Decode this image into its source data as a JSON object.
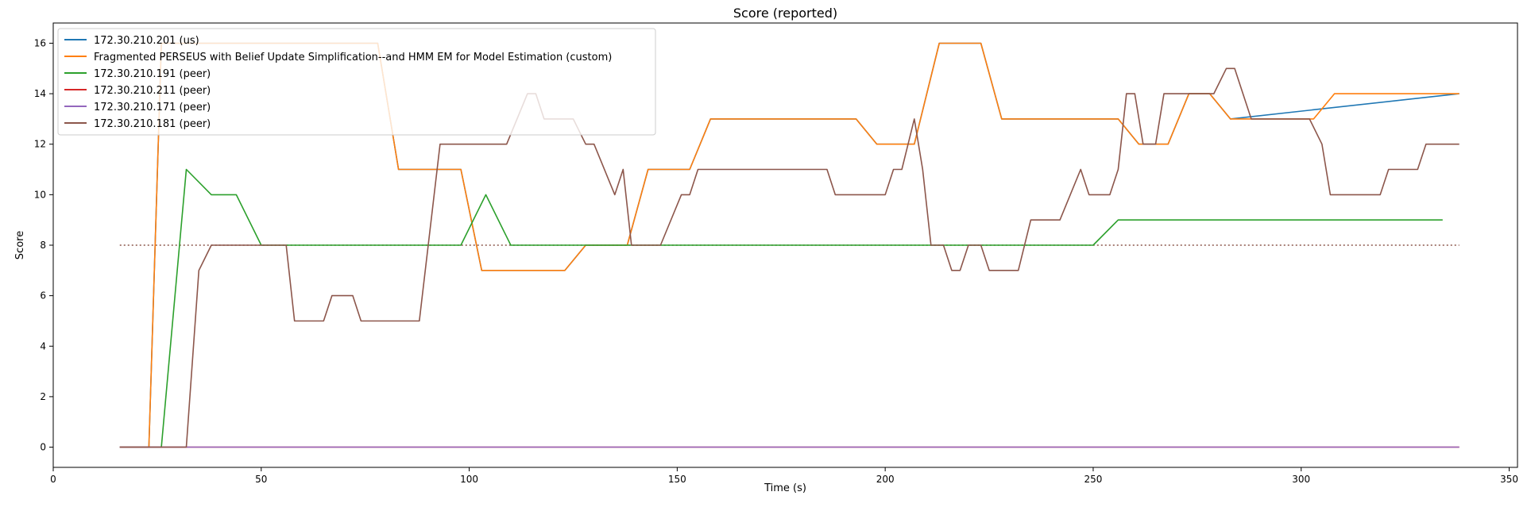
{
  "chart_data": {
    "type": "line",
    "title": "Score (reported)",
    "xlabel": "Time (s)",
    "ylabel": "Score",
    "xlim": [
      0,
      352
    ],
    "ylim": [
      -0.8,
      16.8
    ],
    "xticks": [
      0,
      50,
      100,
      150,
      200,
      250,
      300,
      350
    ],
    "yticks": [
      0,
      2,
      4,
      6,
      8,
      10,
      12,
      14,
      16
    ],
    "grid": false,
    "legend_position": "top-left",
    "reference_line": {
      "y": 8,
      "x_range": [
        16,
        338
      ],
      "style": "dotted",
      "color": "#8c564b"
    },
    "series": [
      {
        "name": "172.30.210.201 (us)",
        "color": "#1f77b4",
        "points": [
          [
            16,
            0
          ],
          [
            23,
            0
          ],
          [
            26,
            16
          ],
          [
            78,
            16
          ],
          [
            83,
            11
          ],
          [
            98,
            11
          ],
          [
            103,
            7
          ],
          [
            123,
            7
          ],
          [
            128,
            8
          ],
          [
            138,
            8
          ],
          [
            143,
            11
          ],
          [
            153,
            11
          ],
          [
            158,
            13
          ],
          [
            193,
            13
          ],
          [
            198,
            12
          ],
          [
            207,
            12
          ],
          [
            213,
            16
          ],
          [
            223,
            16
          ],
          [
            228,
            13
          ],
          [
            256,
            13
          ],
          [
            261,
            12
          ],
          [
            268,
            12
          ],
          [
            273,
            14
          ],
          [
            278,
            14
          ],
          [
            283,
            13
          ],
          [
            338,
            14
          ]
        ]
      },
      {
        "name": "Fragmented PERSEUS with Belief Update Simplification--and HMM EM for Model Estimation (custom)",
        "color": "#ff7f0e",
        "points": [
          [
            16,
            0
          ],
          [
            23,
            0
          ],
          [
            26,
            16
          ],
          [
            78,
            16
          ],
          [
            83,
            11
          ],
          [
            98,
            11
          ],
          [
            103,
            7
          ],
          [
            123,
            7
          ],
          [
            128,
            8
          ],
          [
            138,
            8
          ],
          [
            143,
            11
          ],
          [
            153,
            11
          ],
          [
            158,
            13
          ],
          [
            193,
            13
          ],
          [
            198,
            12
          ],
          [
            207,
            12
          ],
          [
            213,
            16
          ],
          [
            223,
            16
          ],
          [
            228,
            13
          ],
          [
            256,
            13
          ],
          [
            261,
            12
          ],
          [
            266,
            12
          ],
          [
            268,
            12
          ],
          [
            273,
            14
          ],
          [
            278,
            14
          ],
          [
            283,
            13
          ],
          [
            303,
            13
          ],
          [
            308,
            14
          ],
          [
            338,
            14
          ]
        ]
      },
      {
        "name": "172.30.210.191 (peer)",
        "color": "#2ca02c",
        "points": [
          [
            16,
            0
          ],
          [
            26,
            0
          ],
          [
            32,
            11
          ],
          [
            38,
            10
          ],
          [
            44,
            10
          ],
          [
            50,
            8
          ],
          [
            98,
            8
          ],
          [
            104,
            10
          ],
          [
            110,
            8
          ],
          [
            250,
            8
          ],
          [
            256,
            9
          ],
          [
            334,
            9
          ]
        ]
      },
      {
        "name": "172.30.210.211 (peer)",
        "color": "#d62728",
        "points": [
          [
            16,
            0
          ],
          [
            338,
            0
          ]
        ]
      },
      {
        "name": "172.30.210.171 (peer)",
        "color": "#9467bd",
        "points": [
          [
            16,
            0
          ],
          [
            338,
            0
          ]
        ]
      },
      {
        "name": "172.30.210.181 (peer)",
        "color": "#8c564b",
        "points": [
          [
            16,
            0
          ],
          [
            32,
            0
          ],
          [
            35,
            7
          ],
          [
            38,
            8
          ],
          [
            56,
            8
          ],
          [
            58,
            5
          ],
          [
            65,
            5
          ],
          [
            67,
            6
          ],
          [
            72,
            6
          ],
          [
            74,
            5
          ],
          [
            88,
            5
          ],
          [
            93,
            12
          ],
          [
            109,
            12
          ],
          [
            114,
            14
          ],
          [
            116,
            14
          ],
          [
            118,
            13
          ],
          [
            125,
            13
          ],
          [
            128,
            12
          ],
          [
            130,
            12
          ],
          [
            135,
            10
          ],
          [
            137,
            11
          ],
          [
            139,
            8
          ],
          [
            146,
            8
          ],
          [
            151,
            10
          ],
          [
            153,
            10
          ],
          [
            155,
            11
          ],
          [
            186,
            11
          ],
          [
            188,
            10
          ],
          [
            200,
            10
          ],
          [
            202,
            11
          ],
          [
            204,
            11
          ],
          [
            207,
            13
          ],
          [
            209,
            11
          ],
          [
            211,
            8
          ],
          [
            214,
            8
          ],
          [
            216,
            7
          ],
          [
            218,
            7
          ],
          [
            220,
            8
          ],
          [
            223,
            8
          ],
          [
            225,
            7
          ],
          [
            232,
            7
          ],
          [
            235,
            9
          ],
          [
            242,
            9
          ],
          [
            247,
            11
          ],
          [
            249,
            10
          ],
          [
            254,
            10
          ],
          [
            256,
            11
          ],
          [
            258,
            14
          ],
          [
            260,
            14
          ],
          [
            262,
            12
          ],
          [
            265,
            12
          ],
          [
            267,
            14
          ],
          [
            279,
            14
          ],
          [
            282,
            15
          ],
          [
            284,
            15
          ],
          [
            288,
            13
          ],
          [
            302,
            13
          ],
          [
            305,
            12
          ],
          [
            307,
            10
          ],
          [
            319,
            10
          ],
          [
            321,
            11
          ],
          [
            328,
            11
          ],
          [
            330,
            12
          ],
          [
            338,
            12
          ]
        ]
      }
    ]
  }
}
